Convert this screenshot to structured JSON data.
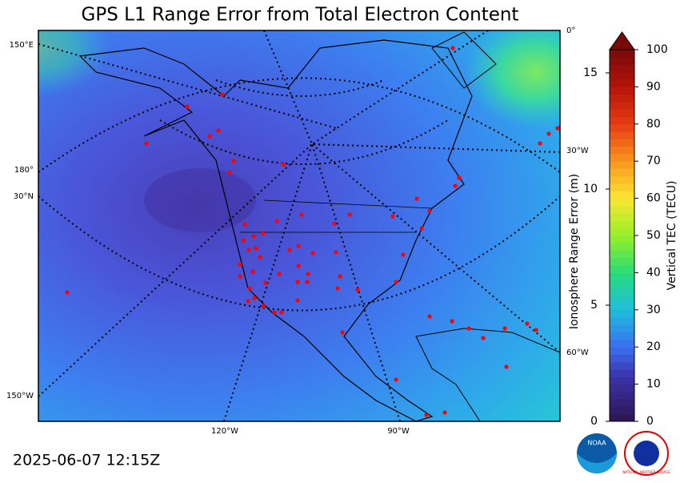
{
  "title": "GPS L1 Range Error from Total Electron Content",
  "timestamp": "2025-06-07 12:15Z",
  "graticule_labels": {
    "lon_150e": "150°E",
    "lon_180": "180°",
    "lat_30n": "30°N",
    "lon_150w": "150°W",
    "lon_0": "0°",
    "lon_30w": "30°W",
    "lon_60w": "60°W",
    "lon_120w": "120°W",
    "lon_90w": "90°W"
  },
  "colorbar": {
    "label": "Vertical TEC (TECU)",
    "lim": [
      0,
      100
    ],
    "ticks": [
      0,
      10,
      20,
      30,
      40,
      50,
      60,
      70,
      80,
      90,
      100
    ]
  },
  "range_axis": {
    "label": "Ionosphere Range Error (m)",
    "lim": [
      0,
      16
    ],
    "ticks": [
      0,
      5,
      10,
      15
    ]
  },
  "logos": {
    "noaa": "NOAA",
    "nws": "NATIONAL WEATHER SERVICE"
  }
}
